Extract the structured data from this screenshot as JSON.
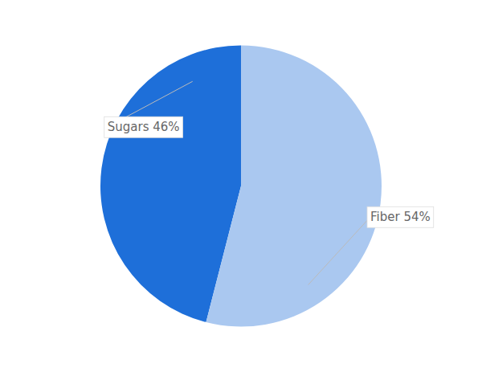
{
  "chart_data": {
    "type": "pie",
    "values": [
      46,
      54
    ],
    "value_labels": [
      "Sugars 46%",
      "Fiber 54%"
    ],
    "colors": [
      "#1e6fd9",
      "#aac8f0"
    ],
    "data_labels": true
  }
}
